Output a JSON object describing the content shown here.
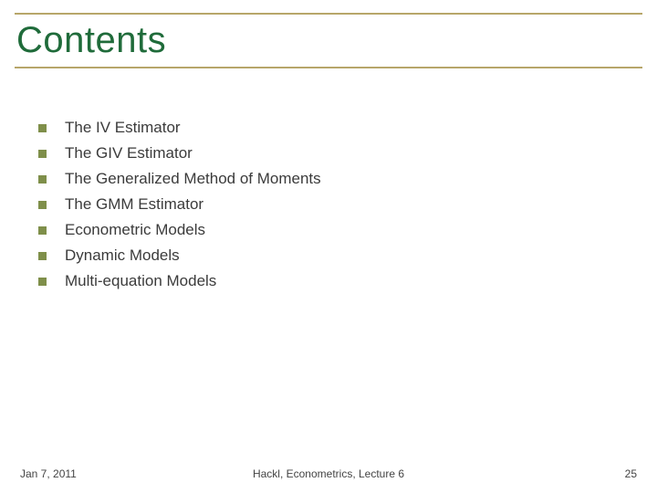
{
  "slide": {
    "title": "Contents",
    "title_color": "#1f6b3a",
    "rule_color": "#b7a66a",
    "bullet_color": "#7f8f4a",
    "text_color": "#3b3b3b",
    "items": [
      "The IV Estimator",
      "The GIV Estimator",
      "The Generalized Method of Moments",
      "The GMM Estimator",
      "Econometric Models",
      "Dynamic Models",
      "Multi-equation Models"
    ]
  },
  "footer": {
    "date": "Jan 7, 2011",
    "center": "Hackl,  Econometrics, Lecture 6",
    "page": "25"
  }
}
